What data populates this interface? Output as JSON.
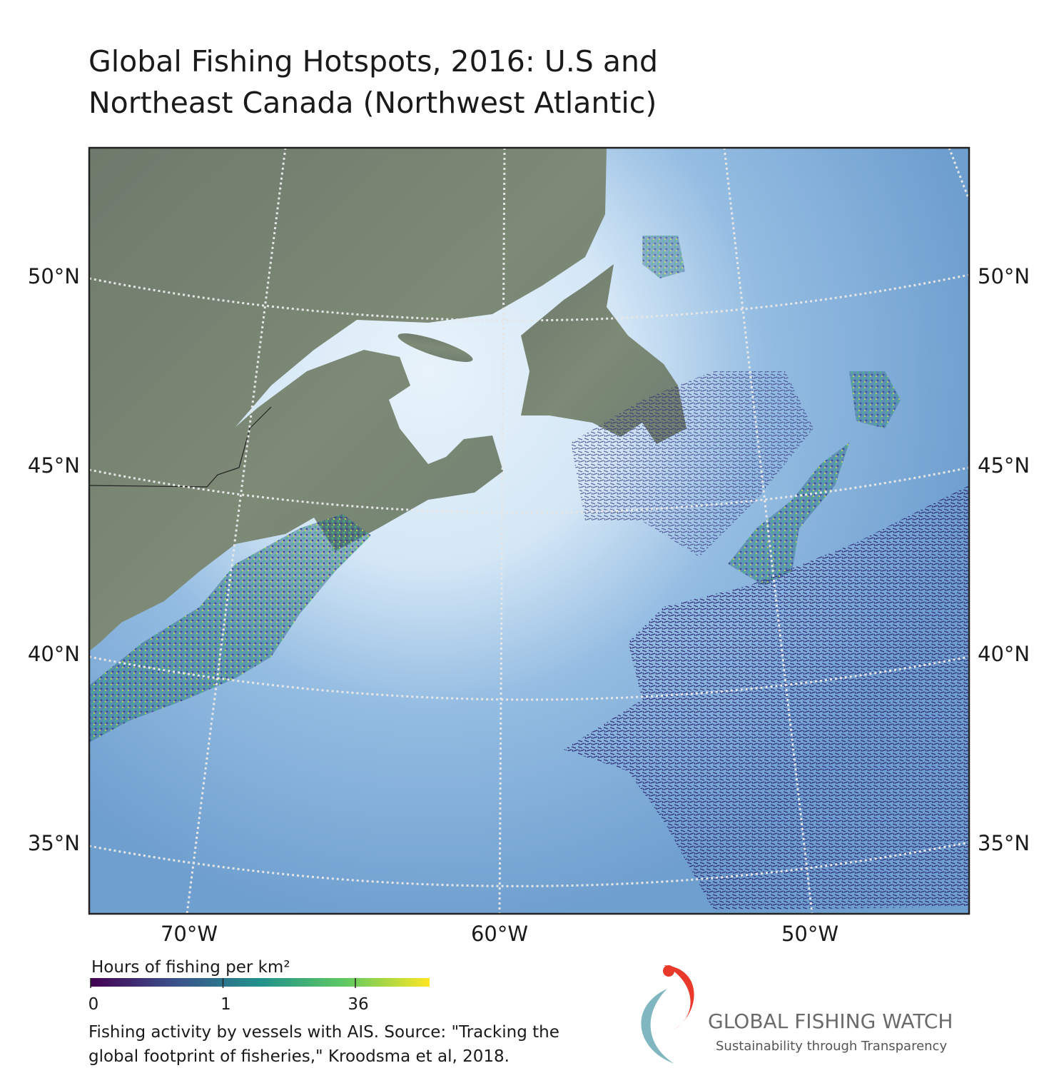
{
  "title": [
    "Global Fishing Hotspots, 2016: U.S and",
    "Northeast Canada (Northwest Atlantic)"
  ],
  "map": {
    "lat_labels": [
      "50°N",
      "45°N",
      "40°N",
      "35°N"
    ],
    "lon_labels": [
      "70°W",
      "60°W",
      "50°W"
    ]
  },
  "legend": {
    "title": "Hours of fishing per km²",
    "ticks": [
      0,
      1,
      36
    ]
  },
  "source": [
    "Fishing activity by vessels with AIS. Source: \"Tracking the",
    "global footprint of fisheries,\" Kroodsma et al, 2018."
  ],
  "logo": {
    "name": "GLOBAL FISHING WATCH",
    "tagline": "Sustainability through Transparency"
  }
}
